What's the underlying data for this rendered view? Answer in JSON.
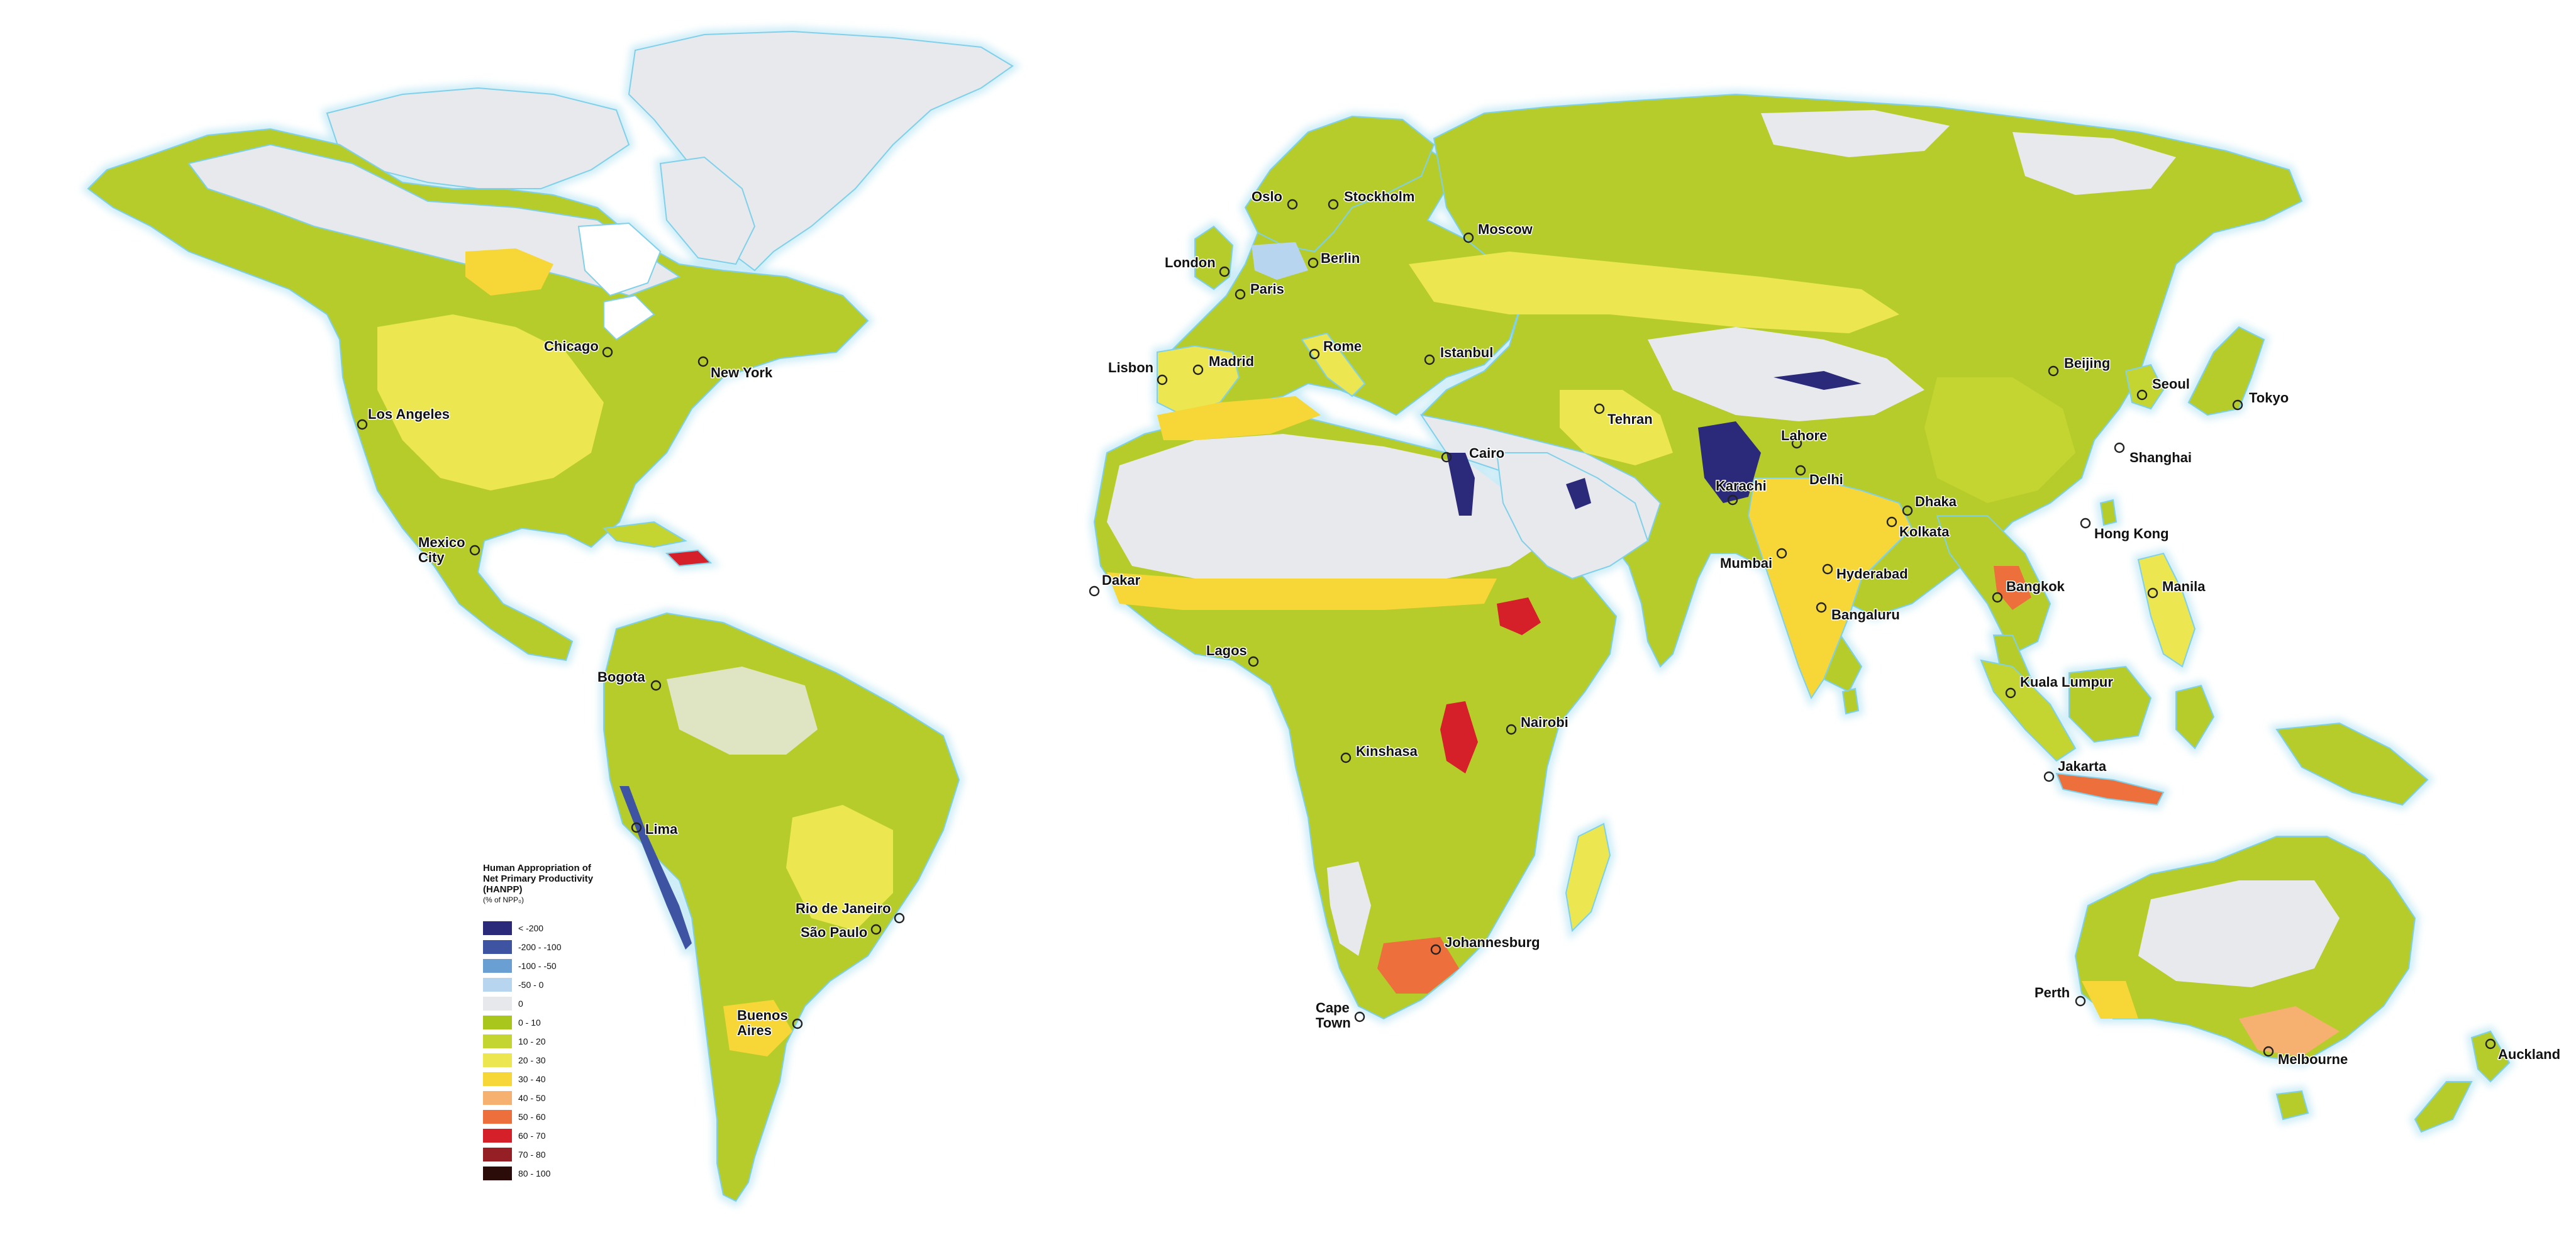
{
  "legend": {
    "title_lines": [
      "Human Appropriation of",
      "Net Primary Productivity",
      "(HANPP)"
    ],
    "unit": "(% of NPP₀)",
    "classes": [
      {
        "label": "< -200",
        "color": "#2b2a7a"
      },
      {
        "label": "-200 - -100",
        "color": "#3e54a3"
      },
      {
        "label": "-100 - -50",
        "color": "#6a9fd4"
      },
      {
        "label": "-50 - 0",
        "color": "#b7d5ef"
      },
      {
        "label": "0",
        "color": "#e6e8ec"
      },
      {
        "label": "0 - 10",
        "color": "#a9c61c"
      },
      {
        "label": "10 - 20",
        "color": "#c4d431"
      },
      {
        "label": "20 - 30",
        "color": "#ece650"
      },
      {
        "label": "30 - 40",
        "color": "#f6d737"
      },
      {
        "label": "40 - 50",
        "color": "#f6b070"
      },
      {
        "label": "50 - 60",
        "color": "#ec6f3c"
      },
      {
        "label": "60 - 70",
        "color": "#d5202a"
      },
      {
        "label": "70 - 80",
        "color": "#951f24"
      },
      {
        "label": "80 - 100",
        "color": "#2b0c08"
      }
    ]
  },
  "cities": [
    {
      "name": "Oslo"
    },
    {
      "name": "Stockholm"
    },
    {
      "name": "Moscow"
    },
    {
      "name": "London"
    },
    {
      "name": "Berlin"
    },
    {
      "name": "Paris"
    },
    {
      "name": "Chicago"
    },
    {
      "name": "New York"
    },
    {
      "name": "Lisbon"
    },
    {
      "name": "Madrid"
    },
    {
      "name": "Rome"
    },
    {
      "name": "Istanbul"
    },
    {
      "name": "Beijing"
    },
    {
      "name": "Seoul"
    },
    {
      "name": "Tokyo"
    },
    {
      "name": "Los Angeles"
    },
    {
      "name": "Tehran"
    },
    {
      "name": "Lahore"
    },
    {
      "name": "Shanghai"
    },
    {
      "name": "Cairo"
    },
    {
      "name": "Karachi"
    },
    {
      "name": "Delhi"
    },
    {
      "name": "Dhaka"
    },
    {
      "name": "Kolkata"
    },
    {
      "name": "Hong Kong"
    },
    {
      "name": "Mexico City"
    },
    {
      "name": "Mumbai"
    },
    {
      "name": "Hyderabad"
    },
    {
      "name": "Dakar"
    },
    {
      "name": "Bangkok"
    },
    {
      "name": "Manila"
    },
    {
      "name": "Bangaluru"
    },
    {
      "name": "Lagos"
    },
    {
      "name": "Bogota"
    },
    {
      "name": "Kuala Lumpur"
    },
    {
      "name": "Nairobi"
    },
    {
      "name": "Kinshasa"
    },
    {
      "name": "Jakarta"
    },
    {
      "name": "Lima"
    },
    {
      "name": "Rio de Janeiro"
    },
    {
      "name": "São Paulo"
    },
    {
      "name": "Johannesburg"
    },
    {
      "name": "Perth"
    },
    {
      "name": "Buenos Aires"
    },
    {
      "name": "Cape Town"
    },
    {
      "name": "Melbourne"
    },
    {
      "name": "Auckland"
    }
  ]
}
